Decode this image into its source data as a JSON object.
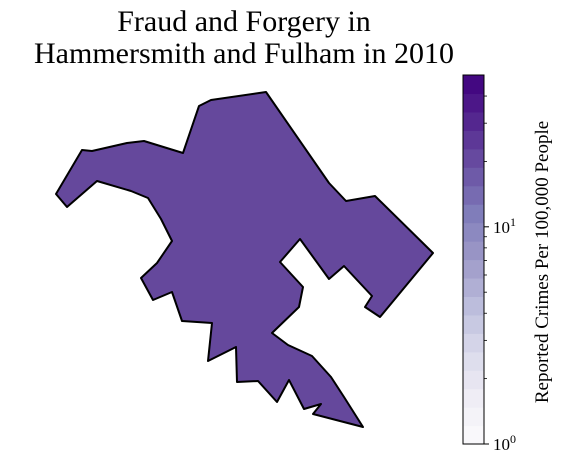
{
  "title_line1": "Fraud and Forgery in",
  "title_line2": "Hammersmith and Fulham in 2010",
  "map": {
    "region_color": "#65489c",
    "border_color": "#000000"
  },
  "colorbar": {
    "label": "Reported Crimes Per 100,000 People",
    "scale": "log",
    "range": [
      1,
      50
    ],
    "colormap": "Purples",
    "ticks": [
      {
        "base": "10",
        "exp": "0",
        "value": 1
      },
      {
        "base": "10",
        "exp": "1",
        "value": 10
      }
    ],
    "colors": [
      "#fcfbfd",
      "#efedf5",
      "#dadaeb",
      "#bcbddc",
      "#9e9ac8",
      "#807dba",
      "#6a51a3",
      "#54278f",
      "#3f007d"
    ]
  }
}
